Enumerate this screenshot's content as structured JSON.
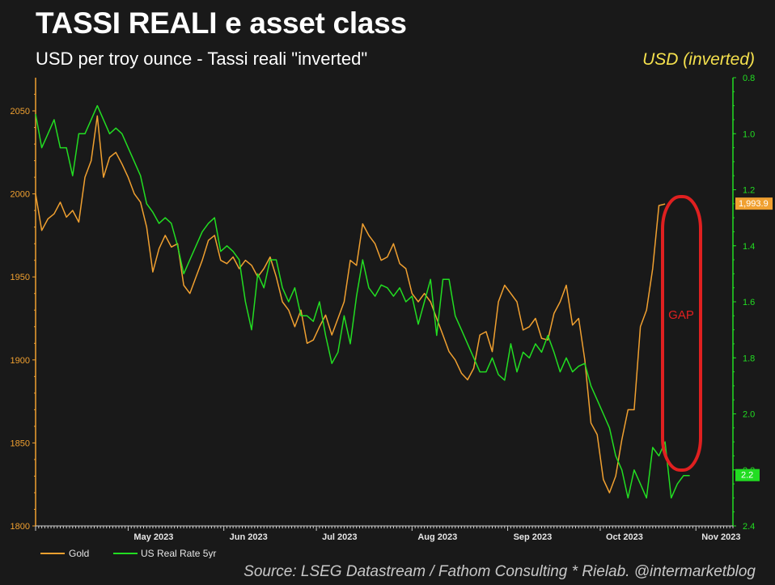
{
  "header": {
    "title": "TASSI REALI e asset class",
    "subtitle": "USD per troy ounce - Tassi reali \"inverted\"",
    "right_label": "USD (inverted)",
    "source": "Source: LSEG Datastream / Fathom Consulting * Rielab. @intermarketblog"
  },
  "chart_data": {
    "type": "line",
    "title": "TASSI REALI e asset class",
    "subtitle": "USD per troy ounce - Tassi reali \"inverted\"",
    "x_range": [
      "2023-04-01",
      "2023-11-13"
    ],
    "x_ticks": [
      {
        "date": "2023-05-01",
        "label": "May 2023"
      },
      {
        "date": "2023-06-01",
        "label": "Jun 2023"
      },
      {
        "date": "2023-07-01",
        "label": "Jul 2023"
      },
      {
        "date": "2023-08-01",
        "label": "Aug 2023"
      },
      {
        "date": "2023-09-01",
        "label": "Sep 2023"
      },
      {
        "date": "2023-10-01",
        "label": "Oct 2023"
      },
      {
        "date": "2023-11-01",
        "label": "Nov 2023"
      }
    ],
    "left_axis": {
      "ylim": [
        1800,
        2070
      ],
      "ticks": [
        1800,
        1850,
        1900,
        1950,
        2000,
        2050
      ],
      "color": "#f0a030"
    },
    "right_axis": {
      "ylim": [
        0.8,
        2.4
      ],
      "inverted": true,
      "ticks": [
        "0.8",
        "1.0",
        "1.2",
        "1.4",
        "1.6",
        "1.8",
        "2.0",
        "2.2",
        "2.4"
      ],
      "color": "#22dd22"
    },
    "last_value_labels": {
      "gold": "1,993.9",
      "real_rate": "2.2"
    },
    "annotation": {
      "text": "GAP",
      "color": "#e02020"
    },
    "grid": false,
    "legend_position": "bottom-left",
    "series": [
      {
        "name": "Gold",
        "axis": "left",
        "color": "#f0a030",
        "points": [
          [
            "2023-04-01",
            2000
          ],
          [
            "2023-04-03",
            1978
          ],
          [
            "2023-04-05",
            1985
          ],
          [
            "2023-04-07",
            1988
          ],
          [
            "2023-04-09",
            1995
          ],
          [
            "2023-04-11",
            1986
          ],
          [
            "2023-04-13",
            1990
          ],
          [
            "2023-04-15",
            1983
          ],
          [
            "2023-04-17",
            2010
          ],
          [
            "2023-04-19",
            2020
          ],
          [
            "2023-04-21",
            2047
          ],
          [
            "2023-04-23",
            2010
          ],
          [
            "2023-04-25",
            2022
          ],
          [
            "2023-04-27",
            2025
          ],
          [
            "2023-04-29",
            2018
          ],
          [
            "2023-05-01",
            2010
          ],
          [
            "2023-05-03",
            2000
          ],
          [
            "2023-05-05",
            1995
          ],
          [
            "2023-05-07",
            1980
          ],
          [
            "2023-05-09",
            1953
          ],
          [
            "2023-05-11",
            1967
          ],
          [
            "2023-05-13",
            1975
          ],
          [
            "2023-05-15",
            1968
          ],
          [
            "2023-05-17",
            1970
          ],
          [
            "2023-05-19",
            1945
          ],
          [
            "2023-05-21",
            1940
          ],
          [
            "2023-05-23",
            1950
          ],
          [
            "2023-05-25",
            1960
          ],
          [
            "2023-05-27",
            1972
          ],
          [
            "2023-05-29",
            1975
          ],
          [
            "2023-05-31",
            1960
          ],
          [
            "2023-06-02",
            1958
          ],
          [
            "2023-06-04",
            1962
          ],
          [
            "2023-06-06",
            1955
          ],
          [
            "2023-06-08",
            1960
          ],
          [
            "2023-06-10",
            1957
          ],
          [
            "2023-06-12",
            1950
          ],
          [
            "2023-06-14",
            1955
          ],
          [
            "2023-06-16",
            1962
          ],
          [
            "2023-06-18",
            1950
          ],
          [
            "2023-06-20",
            1935
          ],
          [
            "2023-06-22",
            1930
          ],
          [
            "2023-06-24",
            1920
          ],
          [
            "2023-06-26",
            1930
          ],
          [
            "2023-06-28",
            1910
          ],
          [
            "2023-06-30",
            1912
          ],
          [
            "2023-07-02",
            1920
          ],
          [
            "2023-07-04",
            1927
          ],
          [
            "2023-07-06",
            1915
          ],
          [
            "2023-07-08",
            1925
          ],
          [
            "2023-07-10",
            1935
          ],
          [
            "2023-07-12",
            1960
          ],
          [
            "2023-07-14",
            1957
          ],
          [
            "2023-07-16",
            1982
          ],
          [
            "2023-07-18",
            1975
          ],
          [
            "2023-07-20",
            1970
          ],
          [
            "2023-07-22",
            1960
          ],
          [
            "2023-07-24",
            1962
          ],
          [
            "2023-07-26",
            1970
          ],
          [
            "2023-07-28",
            1958
          ],
          [
            "2023-07-30",
            1955
          ],
          [
            "2023-08-01",
            1940
          ],
          [
            "2023-08-03",
            1935
          ],
          [
            "2023-08-05",
            1940
          ],
          [
            "2023-08-07",
            1935
          ],
          [
            "2023-08-09",
            1925
          ],
          [
            "2023-08-11",
            1915
          ],
          [
            "2023-08-13",
            1905
          ],
          [
            "2023-08-15",
            1900
          ],
          [
            "2023-08-17",
            1892
          ],
          [
            "2023-08-19",
            1888
          ],
          [
            "2023-08-21",
            1895
          ],
          [
            "2023-08-23",
            1915
          ],
          [
            "2023-08-25",
            1917
          ],
          [
            "2023-08-27",
            1905
          ],
          [
            "2023-08-29",
            1935
          ],
          [
            "2023-08-31",
            1945
          ],
          [
            "2023-09-02",
            1940
          ],
          [
            "2023-09-04",
            1935
          ],
          [
            "2023-09-06",
            1918
          ],
          [
            "2023-09-08",
            1920
          ],
          [
            "2023-09-10",
            1925
          ],
          [
            "2023-09-12",
            1913
          ],
          [
            "2023-09-14",
            1912
          ],
          [
            "2023-09-16",
            1928
          ],
          [
            "2023-09-18",
            1935
          ],
          [
            "2023-09-20",
            1945
          ],
          [
            "2023-09-22",
            1921
          ],
          [
            "2023-09-24",
            1925
          ],
          [
            "2023-09-26",
            1900
          ],
          [
            "2023-09-28",
            1862
          ],
          [
            "2023-09-30",
            1855
          ],
          [
            "2023-10-02",
            1828
          ],
          [
            "2023-10-04",
            1820
          ],
          [
            "2023-10-06",
            1830
          ],
          [
            "2023-10-08",
            1852
          ],
          [
            "2023-10-10",
            1870
          ],
          [
            "2023-10-12",
            1870
          ],
          [
            "2023-10-14",
            1920
          ],
          [
            "2023-10-16",
            1930
          ],
          [
            "2023-10-18",
            1955
          ],
          [
            "2023-10-20",
            1993
          ],
          [
            "2023-10-22",
            1993.9
          ]
        ]
      },
      {
        "name": "US Real Rate 5yr",
        "axis": "right",
        "color": "#22dd22",
        "points": [
          [
            "2023-04-01",
            0.93
          ],
          [
            "2023-04-03",
            1.05
          ],
          [
            "2023-04-05",
            1.0
          ],
          [
            "2023-04-07",
            0.95
          ],
          [
            "2023-04-09",
            1.05
          ],
          [
            "2023-04-11",
            1.05
          ],
          [
            "2023-04-13",
            1.15
          ],
          [
            "2023-04-15",
            1.0
          ],
          [
            "2023-04-17",
            1.0
          ],
          [
            "2023-04-19",
            0.95
          ],
          [
            "2023-04-21",
            0.9
          ],
          [
            "2023-04-23",
            0.95
          ],
          [
            "2023-04-25",
            1.0
          ],
          [
            "2023-04-27",
            0.98
          ],
          [
            "2023-04-29",
            1.0
          ],
          [
            "2023-05-01",
            1.05
          ],
          [
            "2023-05-03",
            1.1
          ],
          [
            "2023-05-05",
            1.15
          ],
          [
            "2023-05-07",
            1.25
          ],
          [
            "2023-05-09",
            1.28
          ],
          [
            "2023-05-11",
            1.32
          ],
          [
            "2023-05-13",
            1.3
          ],
          [
            "2023-05-15",
            1.32
          ],
          [
            "2023-05-17",
            1.4
          ],
          [
            "2023-05-19",
            1.5
          ],
          [
            "2023-05-21",
            1.45
          ],
          [
            "2023-05-23",
            1.4
          ],
          [
            "2023-05-25",
            1.35
          ],
          [
            "2023-05-27",
            1.32
          ],
          [
            "2023-05-29",
            1.3
          ],
          [
            "2023-05-31",
            1.42
          ],
          [
            "2023-06-02",
            1.4
          ],
          [
            "2023-06-04",
            1.42
          ],
          [
            "2023-06-06",
            1.45
          ],
          [
            "2023-06-08",
            1.6
          ],
          [
            "2023-06-10",
            1.7
          ],
          [
            "2023-06-12",
            1.5
          ],
          [
            "2023-06-14",
            1.55
          ],
          [
            "2023-06-16",
            1.45
          ],
          [
            "2023-06-18",
            1.45
          ],
          [
            "2023-06-20",
            1.55
          ],
          [
            "2023-06-22",
            1.6
          ],
          [
            "2023-06-24",
            1.55
          ],
          [
            "2023-06-26",
            1.65
          ],
          [
            "2023-06-28",
            1.65
          ],
          [
            "2023-06-30",
            1.67
          ],
          [
            "2023-07-02",
            1.6
          ],
          [
            "2023-07-04",
            1.72
          ],
          [
            "2023-07-06",
            1.82
          ],
          [
            "2023-07-08",
            1.78
          ],
          [
            "2023-07-10",
            1.65
          ],
          [
            "2023-07-12",
            1.75
          ],
          [
            "2023-07-14",
            1.58
          ],
          [
            "2023-07-16",
            1.45
          ],
          [
            "2023-07-18",
            1.55
          ],
          [
            "2023-07-20",
            1.58
          ],
          [
            "2023-07-22",
            1.54
          ],
          [
            "2023-07-24",
            1.55
          ],
          [
            "2023-07-26",
            1.58
          ],
          [
            "2023-07-28",
            1.55
          ],
          [
            "2023-07-30",
            1.6
          ],
          [
            "2023-08-01",
            1.58
          ],
          [
            "2023-08-03",
            1.68
          ],
          [
            "2023-08-05",
            1.6
          ],
          [
            "2023-08-07",
            1.52
          ],
          [
            "2023-08-09",
            1.72
          ],
          [
            "2023-08-11",
            1.52
          ],
          [
            "2023-08-13",
            1.52
          ],
          [
            "2023-08-15",
            1.65
          ],
          [
            "2023-08-17",
            1.7
          ],
          [
            "2023-08-19",
            1.75
          ],
          [
            "2023-08-21",
            1.8
          ],
          [
            "2023-08-23",
            1.85
          ],
          [
            "2023-08-25",
            1.85
          ],
          [
            "2023-08-27",
            1.8
          ],
          [
            "2023-08-29",
            1.86
          ],
          [
            "2023-08-31",
            1.88
          ],
          [
            "2023-09-02",
            1.75
          ],
          [
            "2023-09-04",
            1.85
          ],
          [
            "2023-09-06",
            1.78
          ],
          [
            "2023-09-08",
            1.8
          ],
          [
            "2023-09-10",
            1.75
          ],
          [
            "2023-09-12",
            1.78
          ],
          [
            "2023-09-14",
            1.72
          ],
          [
            "2023-09-16",
            1.78
          ],
          [
            "2023-09-18",
            1.85
          ],
          [
            "2023-09-20",
            1.8
          ],
          [
            "2023-09-22",
            1.85
          ],
          [
            "2023-09-24",
            1.83
          ],
          [
            "2023-09-26",
            1.82
          ],
          [
            "2023-09-28",
            1.9
          ],
          [
            "2023-09-30",
            1.95
          ],
          [
            "2023-10-02",
            2.0
          ],
          [
            "2023-10-04",
            2.05
          ],
          [
            "2023-10-06",
            2.15
          ],
          [
            "2023-10-08",
            2.2
          ],
          [
            "2023-10-10",
            2.3
          ],
          [
            "2023-10-12",
            2.2
          ],
          [
            "2023-10-14",
            2.25
          ],
          [
            "2023-10-16",
            2.3
          ],
          [
            "2023-10-18",
            2.12
          ],
          [
            "2023-10-20",
            2.15
          ],
          [
            "2023-10-22",
            2.1
          ],
          [
            "2023-10-24",
            2.3
          ],
          [
            "2023-10-26",
            2.25
          ],
          [
            "2023-10-28",
            2.22
          ],
          [
            "2023-10-30",
            2.22
          ]
        ]
      }
    ]
  }
}
